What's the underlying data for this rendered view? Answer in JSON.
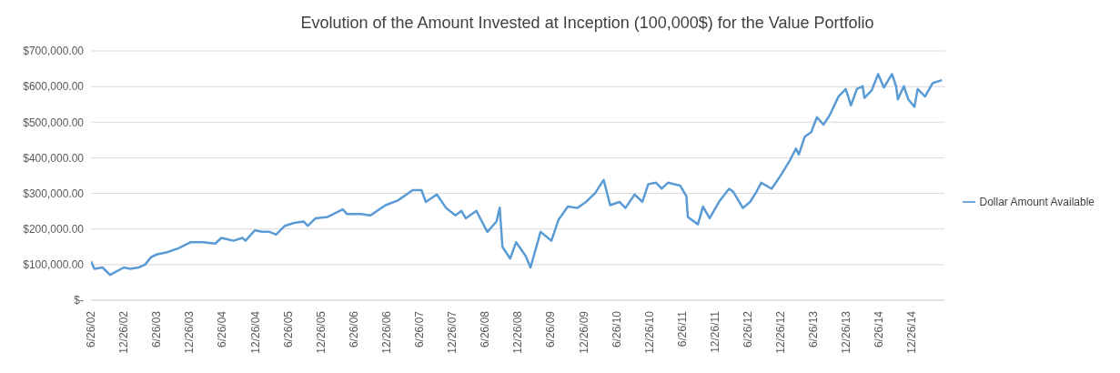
{
  "chart_data": {
    "type": "line",
    "title": "Evolution of the Amount Invested at Inception (100,000$) for the Value Portfolio",
    "x": [
      "2002-06-26",
      "2002-07-15",
      "2002-08-29",
      "2002-10-10",
      "2002-12-26",
      "2003-01-29",
      "2003-03-20",
      "2003-04-23",
      "2003-05-26",
      "2003-06-29",
      "2003-08-20",
      "2003-10-26",
      "2004-01-02",
      "2004-03-10",
      "2004-05-17",
      "2004-06-20",
      "2004-08-26",
      "2004-10-15",
      "2004-11-01",
      "2004-12-23",
      "2005-02-03",
      "2005-03-15",
      "2005-04-20",
      "2005-06-08",
      "2005-07-29",
      "2005-09-20",
      "2005-10-14",
      "2005-11-26",
      "2006-02-01",
      "2006-03-22",
      "2006-04-26",
      "2006-05-20",
      "2006-08-05",
      "2006-09-26",
      "2006-12-20",
      "2007-02-26",
      "2007-05-20",
      "2007-07-08",
      "2007-08-01",
      "2007-10-01",
      "2007-11-22",
      "2008-01-13",
      "2008-02-15",
      "2008-03-10",
      "2008-05-08",
      "2008-07-08",
      "2008-08-28",
      "2008-09-15",
      "2008-09-30",
      "2008-11-12",
      "2008-12-15",
      "2009-02-05",
      "2009-03-05",
      "2009-04-30",
      "2009-06-29",
      "2009-08-08",
      "2009-09-29",
      "2009-11-20",
      "2010-01-08",
      "2010-02-28",
      "2010-04-16",
      "2010-05-22",
      "2010-07-13",
      "2010-08-15",
      "2010-10-05",
      "2010-11-17",
      "2010-12-20",
      "2011-02-01",
      "2011-03-05",
      "2011-04-08",
      "2011-06-15",
      "2011-07-20",
      "2011-07-28",
      "2011-09-22",
      "2011-10-20",
      "2011-11-26",
      "2012-01-22",
      "2012-03-13",
      "2012-04-05",
      "2012-05-29",
      "2012-07-08",
      "2012-08-13",
      "2012-09-08",
      "2012-11-05",
      "2012-12-26",
      "2013-02-15",
      "2013-03-20",
      "2013-04-05",
      "2013-05-08",
      "2013-06-13",
      "2013-07-15",
      "2013-08-20",
      "2013-09-22",
      "2013-11-12",
      "2013-12-22",
      "2014-01-20",
      "2014-02-22",
      "2014-03-26",
      "2014-04-05",
      "2014-05-15",
      "2014-06-20",
      "2014-07-22",
      "2014-09-05",
      "2014-09-28",
      "2014-10-08",
      "2014-11-10",
      "2014-12-05",
      "2015-01-08",
      "2015-01-26",
      "2015-03-08",
      "2015-04-20",
      "2015-06-10"
    ],
    "series": [
      {
        "name": "Dollar Amount Available",
        "color": "#5b9bd5",
        "values": [
          109000,
          88000,
          92000,
          71000,
          92000,
          88000,
          92000,
          100000,
          121000,
          129000,
          134000,
          146000,
          163000,
          163000,
          159000,
          175000,
          167000,
          175000,
          167000,
          196000,
          192000,
          192000,
          184000,
          209000,
          217000,
          221000,
          209000,
          230000,
          234000,
          246000,
          255000,
          242000,
          242000,
          238000,
          267000,
          280000,
          309000,
          309000,
          276000,
          297000,
          259000,
          238000,
          251000,
          230000,
          251000,
          192000,
          221000,
          260000,
          150000,
          117000,
          163000,
          125000,
          92000,
          192000,
          167000,
          226000,
          263000,
          259000,
          276000,
          301000,
          338000,
          267000,
          276000,
          259000,
          297000,
          276000,
          326000,
          330000,
          313000,
          330000,
          322000,
          292000,
          234000,
          213000,
          263000,
          230000,
          280000,
          313000,
          305000,
          259000,
          276000,
          305000,
          330000,
          313000,
          351000,
          393000,
          426000,
          409000,
          459000,
          472000,
          514000,
          493000,
          518000,
          572000,
          593000,
          547000,
          593000,
          601000,
          568000,
          589000,
          635000,
          597000,
          635000,
          601000,
          564000,
          601000,
          564000,
          543000,
          593000,
          572000,
          610000,
          618000
        ]
      }
    ],
    "xlim": [
      "2002-06-26",
      "2015-06-26"
    ],
    "xticks": [
      {
        "value": "2002-06-26",
        "label": "6/26/02"
      },
      {
        "value": "2002-12-26",
        "label": "12/26/02"
      },
      {
        "value": "2003-06-26",
        "label": "6/26/03"
      },
      {
        "value": "2003-12-26",
        "label": "12/26/03"
      },
      {
        "value": "2004-06-26",
        "label": "6/26/04"
      },
      {
        "value": "2004-12-26",
        "label": "12/26/04"
      },
      {
        "value": "2005-06-26",
        "label": "6/26/05"
      },
      {
        "value": "2005-12-26",
        "label": "12/26/05"
      },
      {
        "value": "2006-06-26",
        "label": "6/26/06"
      },
      {
        "value": "2006-12-26",
        "label": "12/26/06"
      },
      {
        "value": "2007-06-26",
        "label": "6/26/07"
      },
      {
        "value": "2007-12-26",
        "label": "12/26/07"
      },
      {
        "value": "2008-06-26",
        "label": "6/26/08"
      },
      {
        "value": "2008-12-26",
        "label": "12/26/08"
      },
      {
        "value": "2009-06-26",
        "label": "6/26/09"
      },
      {
        "value": "2009-12-26",
        "label": "12/26/09"
      },
      {
        "value": "2010-06-26",
        "label": "6/26/10"
      },
      {
        "value": "2010-12-26",
        "label": "12/26/10"
      },
      {
        "value": "2011-06-26",
        "label": "6/26/11"
      },
      {
        "value": "2011-12-26",
        "label": "12/26/11"
      },
      {
        "value": "2012-06-26",
        "label": "6/26/12"
      },
      {
        "value": "2012-12-26",
        "label": "12/26/12"
      },
      {
        "value": "2013-06-26",
        "label": "6/26/13"
      },
      {
        "value": "2013-12-26",
        "label": "12/26/13"
      },
      {
        "value": "2014-06-26",
        "label": "6/26/14"
      },
      {
        "value": "2014-12-26",
        "label": "12/26/14"
      }
    ],
    "ylim": [
      0,
      700000
    ],
    "yticks": [
      {
        "value": 0,
        "label": "$-"
      },
      {
        "value": 100000,
        "label": "$100,000.00"
      },
      {
        "value": 200000,
        "label": "$200,000.00"
      },
      {
        "value": 300000,
        "label": "$300,000.00"
      },
      {
        "value": 400000,
        "label": "$400,000.00"
      },
      {
        "value": 500000,
        "label": "$500,000.00"
      },
      {
        "value": 600000,
        "label": "$600,000.00"
      },
      {
        "value": 700000,
        "label": "$700,000.00"
      }
    ],
    "grid": "y",
    "legend": "right",
    "marker": "none",
    "line_style": "solid"
  }
}
